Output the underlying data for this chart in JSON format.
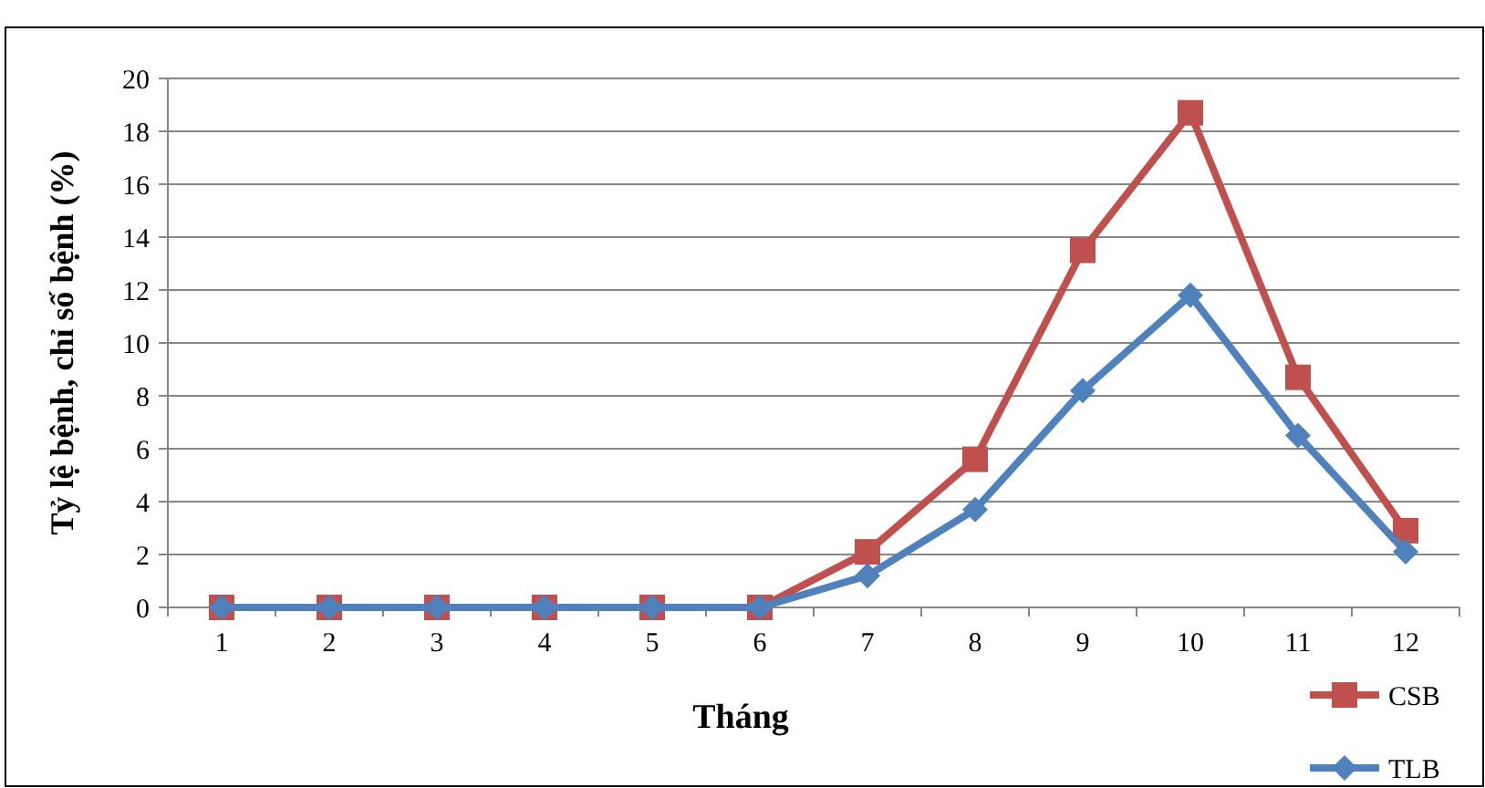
{
  "chart_data": {
    "type": "line",
    "xlabel": "Tháng",
    "ylabel": "Tỷ lệ bệnh, chỉ số bệnh (%)",
    "categories": [
      "1",
      "2",
      "3",
      "4",
      "5",
      "6",
      "7",
      "8",
      "9",
      "10",
      "11",
      "12"
    ],
    "series": [
      {
        "name": "CSB",
        "color": "#c0504d",
        "marker": "square",
        "values": [
          0,
          0,
          0,
          0,
          0,
          0,
          2.1,
          5.6,
          13.5,
          18.7,
          8.7,
          2.9
        ]
      },
      {
        "name": "TLB",
        "color": "#4f81bd",
        "marker": "diamond",
        "values": [
          0,
          0,
          0,
          0,
          0,
          0,
          1.2,
          3.7,
          8.2,
          11.8,
          6.5,
          2.1
        ]
      }
    ],
    "ylim": [
      0,
      20
    ],
    "yticks": [
      0,
      2,
      4,
      6,
      8,
      10,
      12,
      14,
      16,
      18,
      20
    ],
    "grid": "y",
    "legend": "bottom right"
  }
}
